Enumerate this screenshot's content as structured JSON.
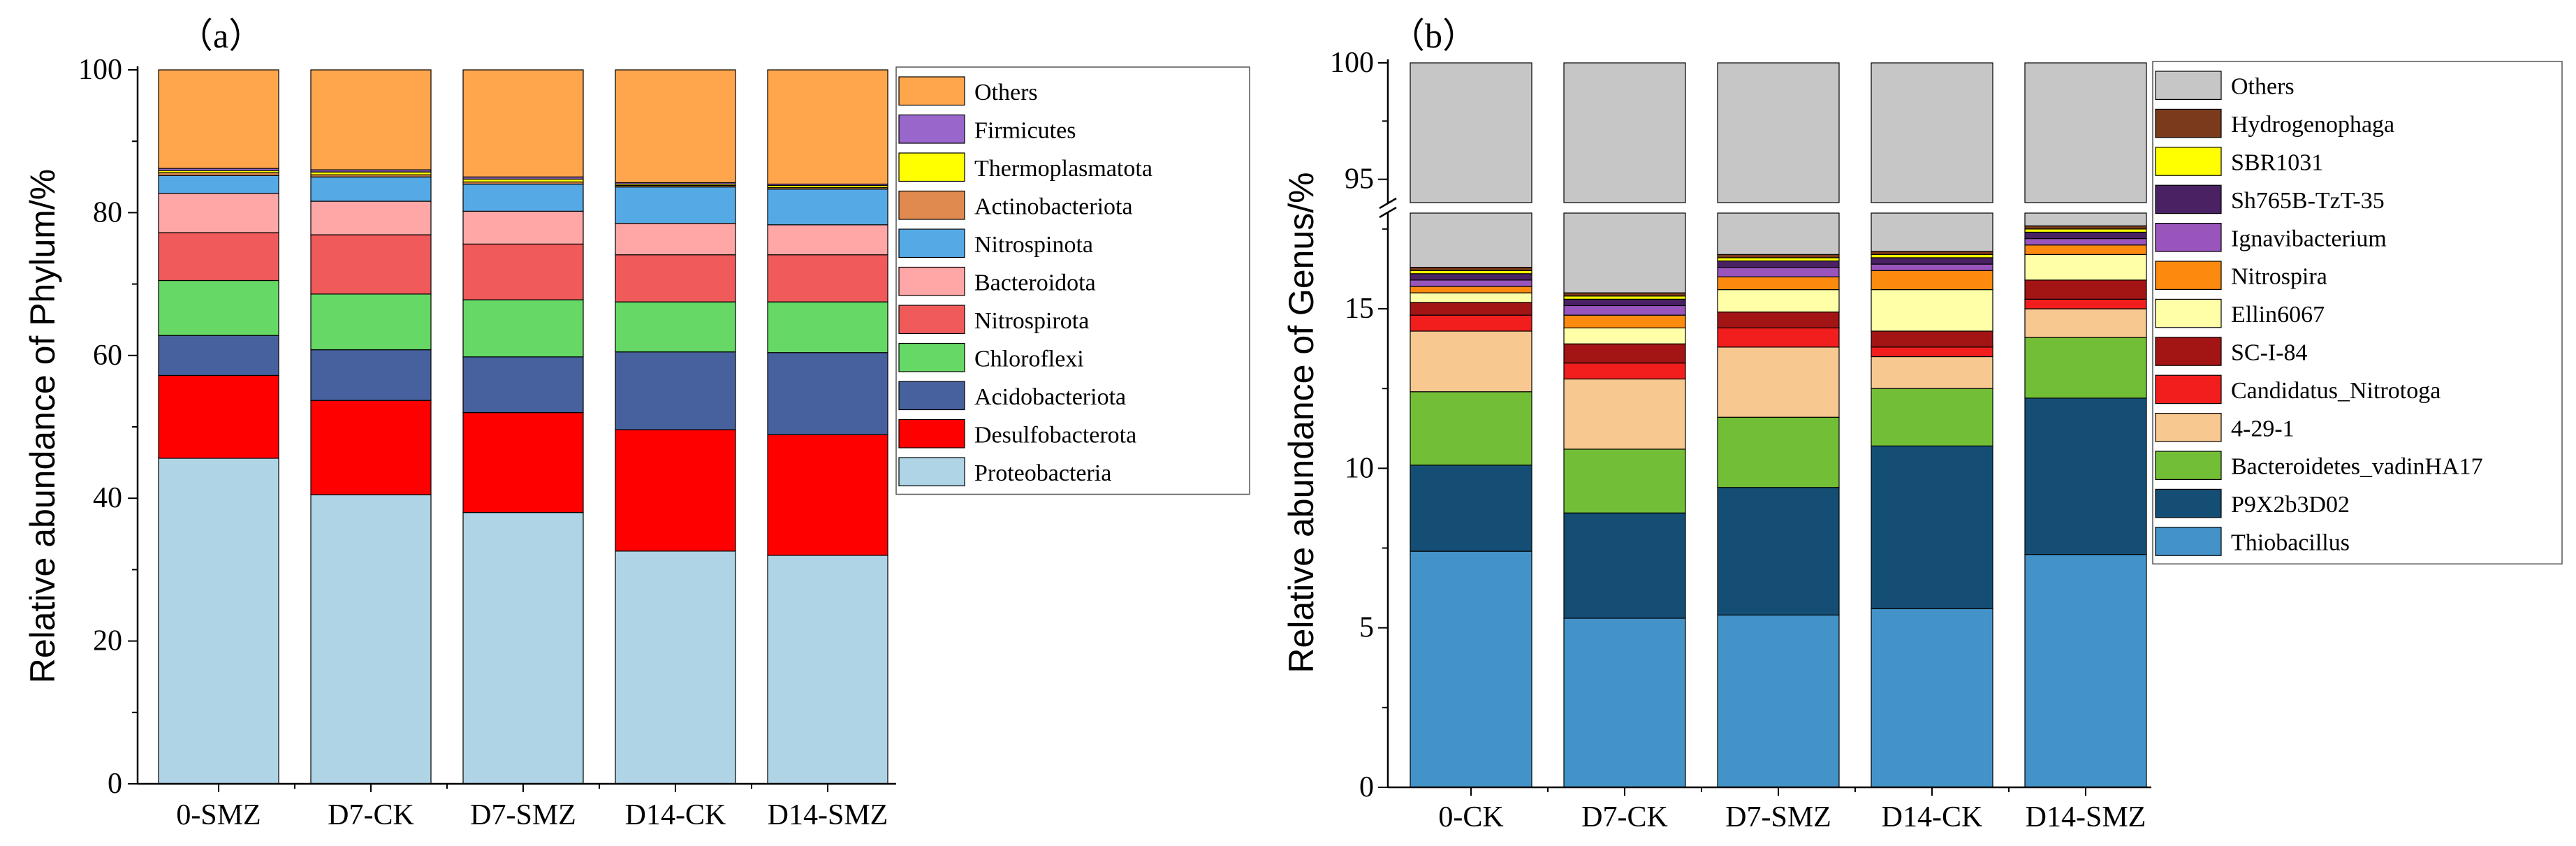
{
  "chart_data": [
    {
      "type": "bar",
      "stacked": true,
      "panel": "（a）",
      "title": "",
      "xlabel": "",
      "ylabel": "Relative abundance of Phylum/%",
      "ylim": [
        0,
        100
      ],
      "yticks": [
        0,
        20,
        40,
        60,
        80,
        100
      ],
      "categories": [
        "0-SMZ",
        "D7-CK",
        "D7-SMZ",
        "D14-CK",
        "D14-SMZ"
      ],
      "legend_position": "right",
      "series": [
        {
          "name": "Proteobacteria",
          "color": "#aed4e6",
          "values": [
            45.6,
            40.5,
            38.0,
            32.6,
            32.0
          ]
        },
        {
          "name": "Desulfobacterota",
          "color": "#ff0000",
          "values": [
            11.6,
            13.2,
            14.0,
            17.0,
            16.9
          ]
        },
        {
          "name": "Acidobacteriota",
          "color": "#47619e",
          "values": [
            5.6,
            7.1,
            7.8,
            10.9,
            11.5
          ]
        },
        {
          "name": "Chloroflexi",
          "color": "#66d866",
          "values": [
            7.7,
            7.8,
            8.0,
            7.0,
            7.1
          ]
        },
        {
          "name": "Nitrospirota",
          "color": "#f05a5a",
          "values": [
            6.7,
            8.3,
            7.8,
            6.6,
            6.6
          ]
        },
        {
          "name": "Bacteroidota",
          "color": "#ffa6a6",
          "values": [
            5.5,
            4.7,
            4.6,
            4.4,
            4.2
          ]
        },
        {
          "name": "Nitrospinota",
          "color": "#55aae6",
          "values": [
            2.5,
            3.4,
            3.8,
            5.1,
            5.0
          ]
        },
        {
          "name": "Actinobacteriota",
          "color": "#e08a50",
          "values": [
            0.4,
            0.3,
            0.3,
            0.2,
            0.2
          ]
        },
        {
          "name": "Thermoplasmatota",
          "color": "#ffff00",
          "values": [
            0.3,
            0.4,
            0.4,
            0.2,
            0.3
          ]
        },
        {
          "name": "Firmicutes",
          "color": "#9966cc",
          "values": [
            0.3,
            0.3,
            0.3,
            0.2,
            0.2
          ]
        },
        {
          "name": "Others",
          "color": "#ffa64d",
          "values": [
            13.8,
            14.0,
            15.0,
            15.8,
            16.0
          ]
        }
      ]
    },
    {
      "type": "bar",
      "stacked": true,
      "panel": "（b）",
      "title": "",
      "xlabel": "",
      "ylabel": "Relative abundance of Genus/%",
      "ylim": [
        0,
        100
      ],
      "axis_break": [
        18,
        94
      ],
      "yticks": [
        0,
        5,
        10,
        15,
        95,
        100
      ],
      "categories": [
        "0-CK",
        "D7-CK",
        "D7-SMZ",
        "D14-CK",
        "D14-SMZ"
      ],
      "legend_position": "right",
      "series": [
        {
          "name": "Thiobacillus",
          "color": "#4393c8",
          "values": [
            7.4,
            5.3,
            5.4,
            5.6,
            7.3
          ]
        },
        {
          "name": "P9X2b3D02",
          "color": "#154e75",
          "values": [
            2.7,
            3.3,
            4.0,
            5.1,
            4.9
          ]
        },
        {
          "name": "Bacteroidetes_vadinHA17",
          "color": "#72bf37",
          "values": [
            2.3,
            2.0,
            2.2,
            1.8,
            1.9
          ]
        },
        {
          "name": "4-29-1",
          "color": "#f8c891",
          "values": [
            1.9,
            2.2,
            2.2,
            1.0,
            0.9
          ]
        },
        {
          "name": "Candidatus_Nitrotoga",
          "color": "#f21e1e",
          "values": [
            0.5,
            0.5,
            0.6,
            0.3,
            0.3
          ]
        },
        {
          "name": "SC-I-84",
          "color": "#a31515",
          "values": [
            0.4,
            0.6,
            0.5,
            0.5,
            0.6
          ]
        },
        {
          "name": "Ellin6067",
          "color": "#ffffa8",
          "values": [
            0.3,
            0.5,
            0.7,
            1.3,
            0.8
          ]
        },
        {
          "name": "Nitrospira",
          "color": "#fb8a0f",
          "values": [
            0.2,
            0.4,
            0.4,
            0.6,
            0.3
          ]
        },
        {
          "name": "Ignavibacterium",
          "color": "#9955bb",
          "values": [
            0.2,
            0.3,
            0.3,
            0.2,
            0.2
          ]
        },
        {
          "name": "Sh765B-TzT-35",
          "color": "#4a2264",
          "values": [
            0.2,
            0.2,
            0.2,
            0.2,
            0.2
          ]
        },
        {
          "name": "SBR1031",
          "color": "#ffff00",
          "values": [
            0.1,
            0.1,
            0.1,
            0.1,
            0.1
          ]
        },
        {
          "name": "Hydrogenophaga",
          "color": "#7b3a1b",
          "values": [
            0.1,
            0.1,
            0.1,
            0.1,
            0.1
          ]
        },
        {
          "name": "Others",
          "color": "#c6c6c6",
          "values": [
            83.7,
            84.5,
            83.3,
            83.2,
            82.4
          ]
        }
      ]
    }
  ]
}
